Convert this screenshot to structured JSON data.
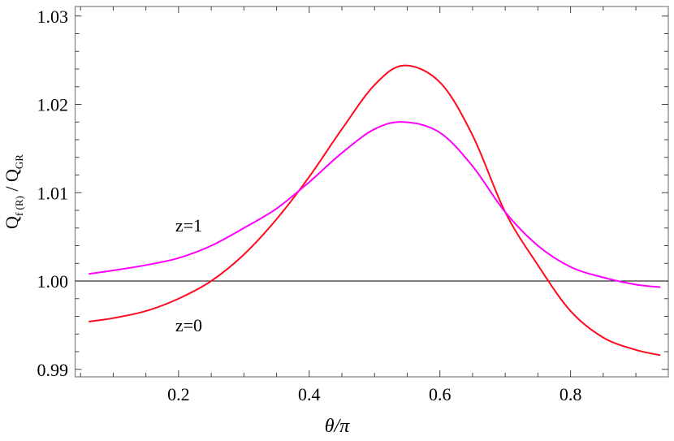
{
  "chart_data": {
    "type": "line",
    "xlabel": "θ/π",
    "ylabel": "Q_f(R) / Q_GR",
    "ylabel_parts": {
      "main1": "Q",
      "sub1": "f (R)",
      "slash": " / ",
      "main2": "Q",
      "sub2": "GR"
    },
    "xlim": [
      0.041,
      0.95
    ],
    "ylim": [
      0.989,
      1.0305
    ],
    "xticks": [
      0.2,
      0.4,
      0.6,
      0.8
    ],
    "xtick_labels": [
      "0.2",
      "0.4",
      "0.6",
      "0.8"
    ],
    "yticks": [
      0.99,
      1.0,
      1.01,
      1.02,
      1.03
    ],
    "ytick_labels": [
      "0.99",
      "1.00",
      "1.01",
      "1.02",
      "1.03"
    ],
    "grid": false,
    "reference_line": 1.0,
    "series": [
      {
        "name": "z=0",
        "color": "#ff0a1e",
        "x": [
          0.0625,
          0.1,
          0.15,
          0.2,
          0.25,
          0.3,
          0.35,
          0.4,
          0.45,
          0.5,
          0.545,
          0.6,
          0.65,
          0.7,
          0.75,
          0.8,
          0.85,
          0.9,
          0.9375
        ],
        "y": [
          0.9954,
          0.9958,
          0.9966,
          0.998,
          1.0,
          1.003,
          1.007,
          1.0118,
          1.0172,
          1.0222,
          1.0244,
          1.0225,
          1.0165,
          1.0078,
          1.0018,
          0.9966,
          0.9936,
          0.9922,
          0.9916
        ]
      },
      {
        "name": "z=1",
        "color": "#ff00ff",
        "x": [
          0.0625,
          0.1,
          0.15,
          0.2,
          0.25,
          0.3,
          0.35,
          0.4,
          0.45,
          0.5,
          0.545,
          0.6,
          0.65,
          0.7,
          0.75,
          0.8,
          0.85,
          0.9,
          0.9375
        ],
        "y": [
          1.0008,
          1.0012,
          1.0018,
          1.0026,
          1.004,
          1.006,
          1.0082,
          1.0112,
          1.0145,
          1.0172,
          1.018,
          1.0168,
          1.013,
          1.0078,
          1.004,
          1.0016,
          1.0004,
          0.9996,
          0.9993
        ]
      }
    ],
    "annotations": [
      {
        "text": "z=1",
        "x": 0.195,
        "y": 1.0056
      },
      {
        "text": "z=0",
        "x": 0.195,
        "y": 0.9943
      }
    ]
  }
}
